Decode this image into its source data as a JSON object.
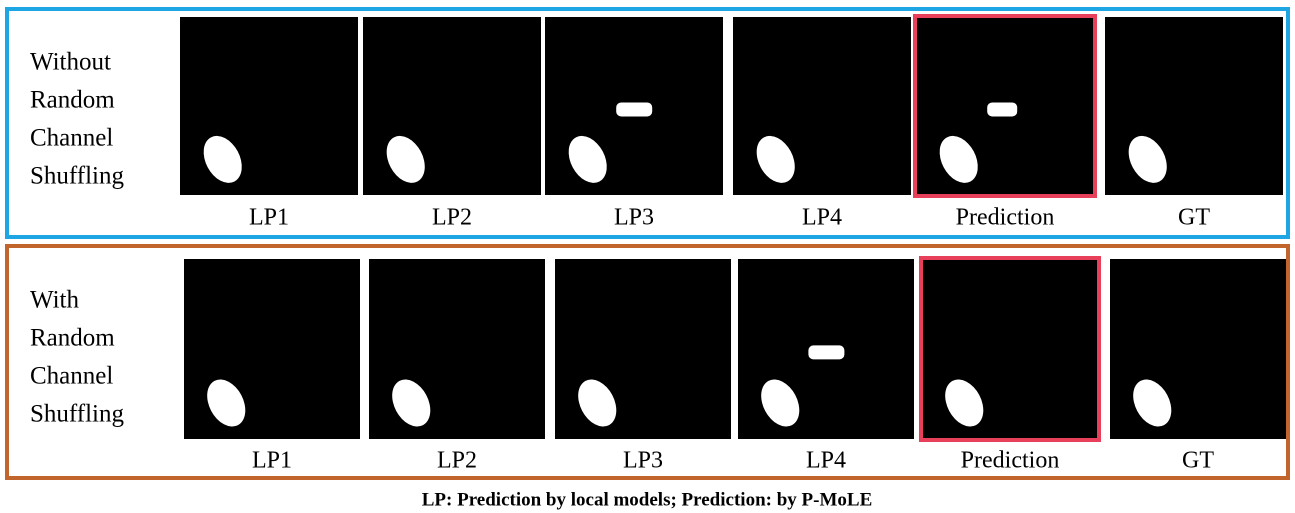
{
  "rows": [
    {
      "label_lines": [
        "Without",
        "Random",
        "Channel",
        "Shuffling"
      ],
      "captions": [
        "LP1",
        "LP2",
        "LP3",
        "LP4",
        "Prediction",
        "GT"
      ]
    },
    {
      "label_lines": [
        "With",
        "Random",
        "Channel",
        "Shuffling"
      ],
      "captions": [
        "LP1",
        "LP2",
        "LP3",
        "LP4",
        "Prediction",
        "GT"
      ]
    }
  ],
  "footer": "LP: Prediction by local models; Prediction: by P-MoLE"
}
